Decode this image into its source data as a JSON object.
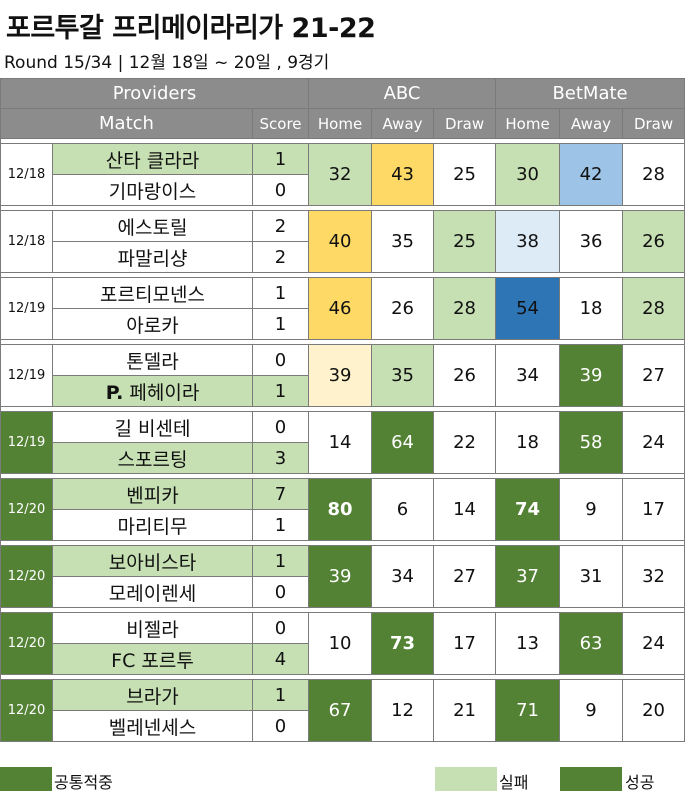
{
  "title": "포르투갈 프리메이라리가 21-22",
  "subtitle": "Round 15/34 | 12월 18일 ~ 20일 , 9경기",
  "colors": {
    "light_green": "#c6e0b4",
    "dark_green": "#548235",
    "yellow": "#ffd966",
    "light_yellow": "#fff2cc",
    "light_blue": "#9dc3e6",
    "very_light_blue": "#ddebf7",
    "dark_blue": "#2e75b6",
    "header_gray": "#8c8c8c"
  },
  "header": {
    "providers": "Providers",
    "match": "Match",
    "score": "Score",
    "provider_names": [
      "ABC",
      "BetMate"
    ],
    "columns": [
      "Home",
      "Away",
      "Draw",
      "Home",
      "Away",
      "Draw"
    ]
  },
  "matches": [
    {
      "date": "12/18",
      "date_bg": "wh",
      "home": "산타 클라라",
      "home_score": "1",
      "home_bg": "lg",
      "away": "기마랑이스",
      "away_score": "0",
      "away_bg": "wh",
      "cells": [
        {
          "v": "32",
          "bg": "lg"
        },
        {
          "v": "43",
          "bg": "yl"
        },
        {
          "v": "25",
          "bg": "wh"
        },
        {
          "v": "30",
          "bg": "lg"
        },
        {
          "v": "42",
          "bg": "lb"
        },
        {
          "v": "28",
          "bg": "wh"
        }
      ]
    },
    {
      "date": "12/18",
      "date_bg": "wh",
      "home": "에스토릴",
      "home_score": "2",
      "home_bg": "wh",
      "away": "파말리샹",
      "away_score": "2",
      "away_bg": "wh",
      "cells": [
        {
          "v": "40",
          "bg": "yl"
        },
        {
          "v": "35",
          "bg": "wh"
        },
        {
          "v": "25",
          "bg": "lg"
        },
        {
          "v": "38",
          "bg": "vl"
        },
        {
          "v": "36",
          "bg": "wh"
        },
        {
          "v": "26",
          "bg": "lg"
        }
      ]
    },
    {
      "date": "12/19",
      "date_bg": "wh",
      "home": "포르티모넨스",
      "home_score": "1",
      "home_bg": "wh",
      "away": "아로카",
      "away_score": "1",
      "away_bg": "wh",
      "cells": [
        {
          "v": "46",
          "bg": "yl"
        },
        {
          "v": "26",
          "bg": "wh"
        },
        {
          "v": "28",
          "bg": "lg"
        },
        {
          "v": "54",
          "bg": "db"
        },
        {
          "v": "18",
          "bg": "wh"
        },
        {
          "v": "28",
          "bg": "lg"
        }
      ]
    },
    {
      "date": "12/19",
      "date_bg": "wh",
      "home": "톤델라",
      "home_score": "0",
      "home_bg": "wh",
      "away": "P. 페헤이라",
      "away_score": "1",
      "away_bg": "lg",
      "away_bold_prefix": "P.",
      "cells": [
        {
          "v": "39",
          "bg": "ly"
        },
        {
          "v": "35",
          "bg": "lg"
        },
        {
          "v": "26",
          "bg": "wh"
        },
        {
          "v": "34",
          "bg": "wh"
        },
        {
          "v": "39",
          "bg": "dg"
        },
        {
          "v": "27",
          "bg": "wh"
        }
      ]
    },
    {
      "date": "12/19",
      "date_bg": "dg",
      "home": "길 비센테",
      "home_score": "0",
      "home_bg": "wh",
      "away": "스포르팅",
      "away_score": "3",
      "away_bg": "lg",
      "cells": [
        {
          "v": "14",
          "bg": "wh"
        },
        {
          "v": "64",
          "bg": "dg"
        },
        {
          "v": "22",
          "bg": "wh"
        },
        {
          "v": "18",
          "bg": "wh"
        },
        {
          "v": "58",
          "bg": "dg"
        },
        {
          "v": "24",
          "bg": "wh"
        }
      ]
    },
    {
      "date": "12/20",
      "date_bg": "dg",
      "home": "벤피카",
      "home_score": "7",
      "home_bg": "lg",
      "away": "마리티무",
      "away_score": "1",
      "away_bg": "wh",
      "cells": [
        {
          "v": "80",
          "bg": "dg",
          "bold": true
        },
        {
          "v": "6",
          "bg": "wh"
        },
        {
          "v": "14",
          "bg": "wh"
        },
        {
          "v": "74",
          "bg": "dg",
          "bold": true
        },
        {
          "v": "9",
          "bg": "wh"
        },
        {
          "v": "17",
          "bg": "wh"
        }
      ]
    },
    {
      "date": "12/20",
      "date_bg": "dg",
      "home": "보아비스타",
      "home_score": "1",
      "home_bg": "lg",
      "away": "모레이렌세",
      "away_score": "0",
      "away_bg": "wh",
      "cells": [
        {
          "v": "39",
          "bg": "dg"
        },
        {
          "v": "34",
          "bg": "wh"
        },
        {
          "v": "27",
          "bg": "wh"
        },
        {
          "v": "37",
          "bg": "dg"
        },
        {
          "v": "31",
          "bg": "wh"
        },
        {
          "v": "32",
          "bg": "wh"
        }
      ]
    },
    {
      "date": "12/20",
      "date_bg": "dg",
      "home": "비젤라",
      "home_score": "0",
      "home_bg": "wh",
      "away": "FC 포르투",
      "away_score": "4",
      "away_bg": "lg",
      "cells": [
        {
          "v": "10",
          "bg": "wh"
        },
        {
          "v": "73",
          "bg": "dg",
          "bold": true
        },
        {
          "v": "17",
          "bg": "wh"
        },
        {
          "v": "13",
          "bg": "wh"
        },
        {
          "v": "63",
          "bg": "dg"
        },
        {
          "v": "24",
          "bg": "wh"
        }
      ]
    },
    {
      "date": "12/20",
      "date_bg": "dg",
      "home": "브라가",
      "home_score": "1",
      "home_bg": "lg",
      "away": "벨레넨세스",
      "away_score": "0",
      "away_bg": "wh",
      "cells": [
        {
          "v": "67",
          "bg": "dg"
        },
        {
          "v": "12",
          "bg": "wh"
        },
        {
          "v": "21",
          "bg": "wh"
        },
        {
          "v": "71",
          "bg": "dg"
        },
        {
          "v": "9",
          "bg": "wh"
        },
        {
          "v": "20",
          "bg": "wh"
        }
      ]
    }
  ],
  "legend": [
    {
      "label": "공통적중",
      "color": "dg"
    },
    {
      "label": "실패",
      "color": "lg"
    },
    {
      "label": "성공",
      "color": "dg"
    }
  ]
}
